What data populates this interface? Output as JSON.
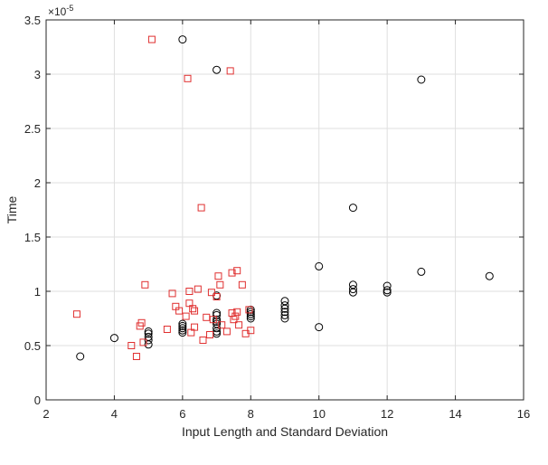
{
  "chart_data": {
    "type": "scatter",
    "title": "",
    "xlabel": "Input Length and Standard Deviation",
    "ylabel": "Time",
    "exponent_label": "×10",
    "exponent_power": "-5",
    "xlim": [
      2,
      16
    ],
    "ylim": [
      0,
      3.5
    ],
    "xticks": [
      2,
      4,
      6,
      8,
      10,
      12,
      14,
      16
    ],
    "yticks": [
      0,
      0.5,
      1,
      1.5,
      2,
      2.5,
      3,
      3.5
    ],
    "ytick_labels": [
      "0",
      "0.5",
      "1",
      "1.5",
      "2",
      "2.5",
      "3",
      "3.5"
    ],
    "grid": true,
    "y_units_note": "y values in units of 1e-5",
    "series": [
      {
        "marker": "circle",
        "color": "#000000",
        "points": [
          [
            3,
            0.4
          ],
          [
            4,
            0.57
          ],
          [
            5,
            0.51
          ],
          [
            5,
            0.55
          ],
          [
            5,
            0.58
          ],
          [
            5,
            0.61
          ],
          [
            5,
            0.63
          ],
          [
            6,
            0.62
          ],
          [
            6,
            0.64
          ],
          [
            6,
            0.66
          ],
          [
            6,
            0.68
          ],
          [
            6,
            0.7
          ],
          [
            6,
            3.32
          ],
          [
            7,
            0.61
          ],
          [
            7,
            0.63
          ],
          [
            7,
            0.66
          ],
          [
            7,
            0.7
          ],
          [
            7,
            0.72
          ],
          [
            7,
            0.74
          ],
          [
            7,
            0.78
          ],
          [
            7,
            0.8
          ],
          [
            7,
            0.96
          ],
          [
            7,
            3.04
          ],
          [
            8,
            0.75
          ],
          [
            8,
            0.77
          ],
          [
            8,
            0.79
          ],
          [
            8,
            0.81
          ],
          [
            8,
            0.83
          ],
          [
            9,
            0.75
          ],
          [
            9,
            0.78
          ],
          [
            9,
            0.81
          ],
          [
            9,
            0.84
          ],
          [
            9,
            0.87
          ],
          [
            9,
            0.91
          ],
          [
            10,
            0.67
          ],
          [
            10,
            1.23
          ],
          [
            11,
            0.99
          ],
          [
            11,
            1.02
          ],
          [
            11,
            1.06
          ],
          [
            11,
            1.77
          ],
          [
            12,
            0.99
          ],
          [
            12,
            1.01
          ],
          [
            12,
            1.05
          ],
          [
            13,
            1.18
          ],
          [
            13,
            2.95
          ],
          [
            15,
            1.14
          ]
        ]
      },
      {
        "marker": "square",
        "color": "#e03030",
        "points": [
          [
            2.9,
            0.79
          ],
          [
            4.5,
            0.5
          ],
          [
            4.65,
            0.4
          ],
          [
            4.75,
            0.68
          ],
          [
            4.8,
            0.71
          ],
          [
            4.85,
            0.53
          ],
          [
            4.9,
            1.06
          ],
          [
            5.1,
            3.32
          ],
          [
            5.55,
            0.65
          ],
          [
            5.7,
            0.98
          ],
          [
            5.8,
            0.86
          ],
          [
            5.9,
            0.82
          ],
          [
            6.1,
            0.77
          ],
          [
            6.15,
            2.96
          ],
          [
            6.2,
            0.89
          ],
          [
            6.2,
            1.0
          ],
          [
            6.25,
            0.62
          ],
          [
            6.3,
            0.84
          ],
          [
            6.35,
            0.82
          ],
          [
            6.35,
            0.67
          ],
          [
            6.45,
            1.02
          ],
          [
            6.55,
            1.77
          ],
          [
            6.6,
            0.55
          ],
          [
            6.7,
            0.76
          ],
          [
            6.8,
            0.6
          ],
          [
            6.85,
            0.99
          ],
          [
            6.9,
            0.74
          ],
          [
            7.0,
            0.95
          ],
          [
            7.05,
            1.14
          ],
          [
            7.1,
            1.06
          ],
          [
            7.15,
            0.69
          ],
          [
            7.3,
            0.63
          ],
          [
            7.4,
            3.03
          ],
          [
            7.45,
            0.8
          ],
          [
            7.45,
            1.17
          ],
          [
            7.5,
            0.74
          ],
          [
            7.55,
            0.77
          ],
          [
            7.6,
            1.19
          ],
          [
            7.6,
            0.81
          ],
          [
            7.65,
            0.69
          ],
          [
            7.75,
            1.06
          ],
          [
            7.85,
            0.61
          ],
          [
            7.95,
            0.83
          ],
          [
            8.0,
            0.64
          ]
        ]
      }
    ]
  }
}
